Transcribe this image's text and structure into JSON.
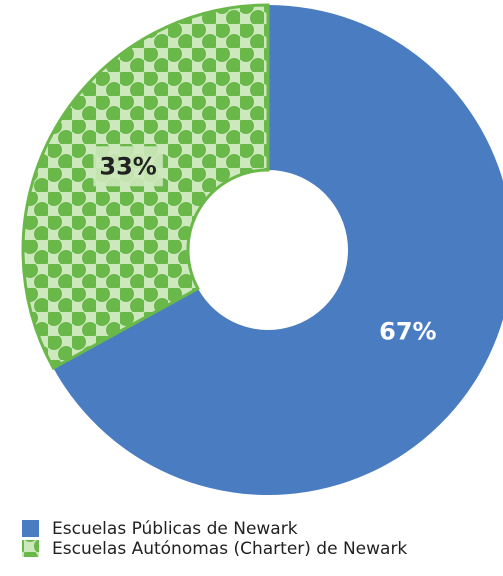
{
  "chart_data": {
    "type": "donut",
    "categories": [
      "Escuelas Públicas de Newark",
      "Escuelas Autónomas (Charter) de Newark"
    ],
    "values": [
      67,
      33
    ],
    "value_labels": [
      "67%",
      "33%"
    ],
    "colors": [
      "#4a7cc2",
      "#6ab84a"
    ],
    "patterns": [
      null,
      "dots"
    ]
  }
}
